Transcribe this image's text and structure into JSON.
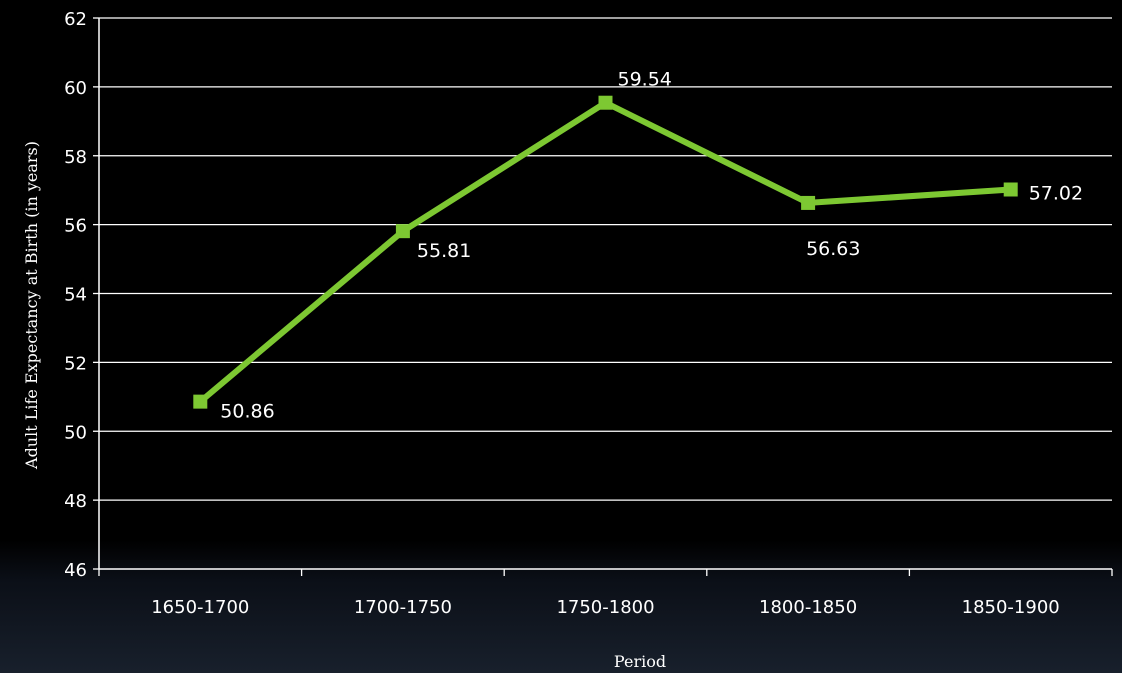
{
  "chart_data": {
    "type": "line",
    "title": "",
    "xlabel": "Period",
    "ylabel": "Adult  Life Expectancy at Birth (in years)",
    "categories": [
      "1650-1700",
      "1700-1750",
      "1750-1800",
      "1800-1850",
      "1850-1900"
    ],
    "series": [
      {
        "values": [
          50.86,
          55.81,
          59.54,
          56.63,
          57.02
        ],
        "value_labels": [
          "50.86",
          "55.81",
          "59.54",
          "56.63",
          "57.02"
        ],
        "color": "#7dc832",
        "marker": "square"
      }
    ],
    "ylim": [
      46,
      62
    ],
    "yticks": [
      46,
      48,
      50,
      52,
      54,
      56,
      58,
      60,
      62
    ],
    "grid": true,
    "legend": "none"
  },
  "colors": {
    "background": "#000000",
    "gridline": "#ffffff",
    "text": "#ffffff",
    "series": "#7dc832"
  }
}
